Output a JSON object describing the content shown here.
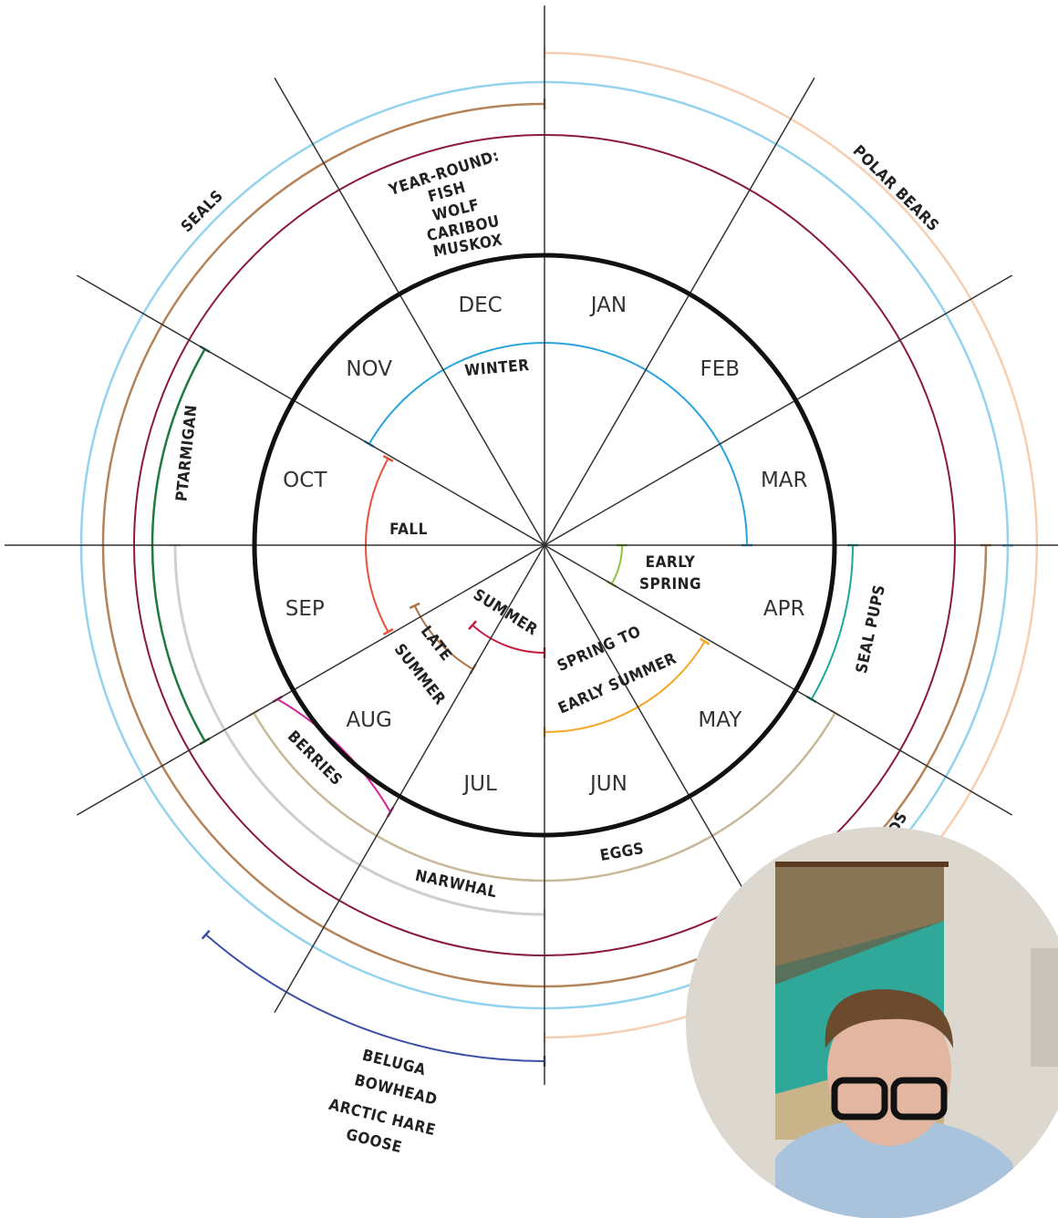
{
  "months": [
    "JAN",
    "FEB",
    "MAR",
    "APR",
    "MAY",
    "JUN",
    "JUL",
    "AUG",
    "SEP",
    "OCT",
    "NOV",
    "DEC"
  ],
  "labels": [
    {
      "lines": [
        "YEAR-ROUND:",
        "FISH",
        "WOLF",
        "CARIBOU",
        "MUSKOX"
      ]
    },
    {
      "lines": [
        "SEALS"
      ]
    },
    {
      "lines": [
        "POLAR BEARS"
      ]
    },
    {
      "lines": [
        "PTARMIGAN"
      ]
    },
    {
      "lines": [
        "SEAL PUPS"
      ]
    },
    {
      "lines": [
        "BERRIES"
      ]
    },
    {
      "lines": [
        "NARWHAL"
      ]
    },
    {
      "lines": [
        "EGGS"
      ]
    },
    {
      "lines": [
        "DS"
      ]
    },
    {
      "lines": [
        "BELUGA",
        "BOWHEAD",
        "ARCTIC HARE",
        "GOOSE"
      ]
    },
    {
      "lines": [
        "WINTER"
      ]
    },
    {
      "lines": [
        "FALL"
      ]
    },
    {
      "lines": [
        "SUMMER"
      ]
    },
    {
      "lines": [
        "LATE",
        "SUMMER"
      ]
    },
    {
      "lines": [
        "EARLY",
        "SPRING"
      ]
    },
    {
      "lines": [
        "SPRING TO",
        "EARLY SUMMER"
      ]
    }
  ]
}
